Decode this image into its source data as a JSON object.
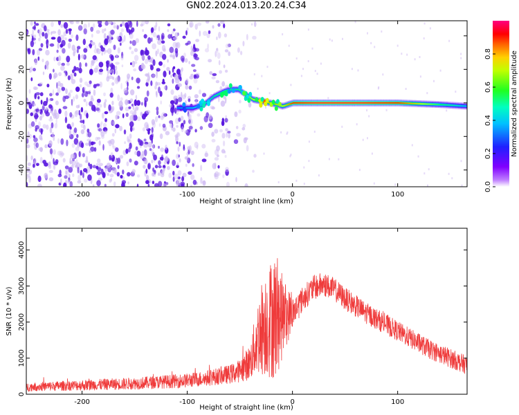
{
  "title": "GN02.2024.013.20.24.C34",
  "colors": {
    "snr_line": "#ef3b3b",
    "cloud_dense": "#5a18e0",
    "cloud_light": "#cdb8f2",
    "colorbar_stops": [
      "#ffffff",
      "#a000ff",
      "#2020ff",
      "#00ffff",
      "#00ff00",
      "#ffff00",
      "#ff0000",
      "#ff00a0"
    ]
  },
  "chart_data": [
    {
      "type": "heatmap",
      "name": "spectrogram",
      "xlabel": "Height of straight line (km)",
      "ylabel": "Frequency (Hz)",
      "xlim": [
        -253,
        166
      ],
      "ylim": [
        -50,
        49
      ],
      "x_ticks": [
        -200,
        -100,
        0,
        100
      ],
      "y_ticks": [
        -40,
        -20,
        0,
        20,
        40
      ],
      "colorbar": {
        "label": "Normalized spectral amplitude",
        "range": [
          0,
          1
        ],
        "ticks": [
          0.0,
          0.2,
          0.4,
          0.6,
          0.8
        ]
      },
      "noise_region": [
        -253,
        -60
      ],
      "ridge": {
        "x": [
          -110,
          -95,
          -85,
          -75,
          -65,
          -58,
          -52,
          -45,
          -38,
          -30,
          -22,
          -15,
          -10,
          -5,
          0,
          20,
          60,
          100,
          140,
          166
        ],
        "y": [
          -3,
          -3,
          -1,
          4,
          7,
          8,
          8,
          5,
          2,
          1,
          0,
          -1,
          -2,
          -1,
          0,
          0,
          0,
          0,
          -1,
          -2
        ],
        "amplitude": [
          0.35,
          0.4,
          0.45,
          0.5,
          0.55,
          0.55,
          0.5,
          0.6,
          0.7,
          0.75,
          0.8,
          0.75,
          0.7,
          0.8,
          0.9,
          0.95,
          0.95,
          0.9,
          0.55,
          0.4
        ]
      }
    },
    {
      "type": "line",
      "name": "snr",
      "xlabel": "Height of straight line (km)",
      "ylabel": "SNR (10 * v/v)",
      "xlim": [
        -253,
        166
      ],
      "ylim": [
        0,
        4600
      ],
      "x_ticks": [
        -200,
        -100,
        0,
        100
      ],
      "y_ticks": [
        0,
        1000,
        2000,
        3000,
        4000
      ],
      "envelope": {
        "x": [
          -253,
          -200,
          -150,
          -100,
          -80,
          -60,
          -50,
          -40,
          -35,
          -30,
          -25,
          -20,
          -15,
          -10,
          0,
          10,
          20,
          30,
          40,
          50,
          70,
          100,
          130,
          150,
          166
        ],
        "mean": [
          200,
          250,
          300,
          380,
          450,
          550,
          650,
          900,
          1400,
          1800,
          2000,
          2100,
          2200,
          2150,
          2250,
          2650,
          2950,
          3050,
          2900,
          2650,
          2250,
          1750,
          1250,
          1000,
          800
        ],
        "spread": [
          120,
          150,
          170,
          200,
          220,
          260,
          320,
          500,
          900,
          1300,
          1500,
          1700,
          1800,
          1200,
          450,
          350,
          350,
          350,
          320,
          320,
          300,
          280,
          270,
          270,
          260
        ]
      }
    }
  ]
}
